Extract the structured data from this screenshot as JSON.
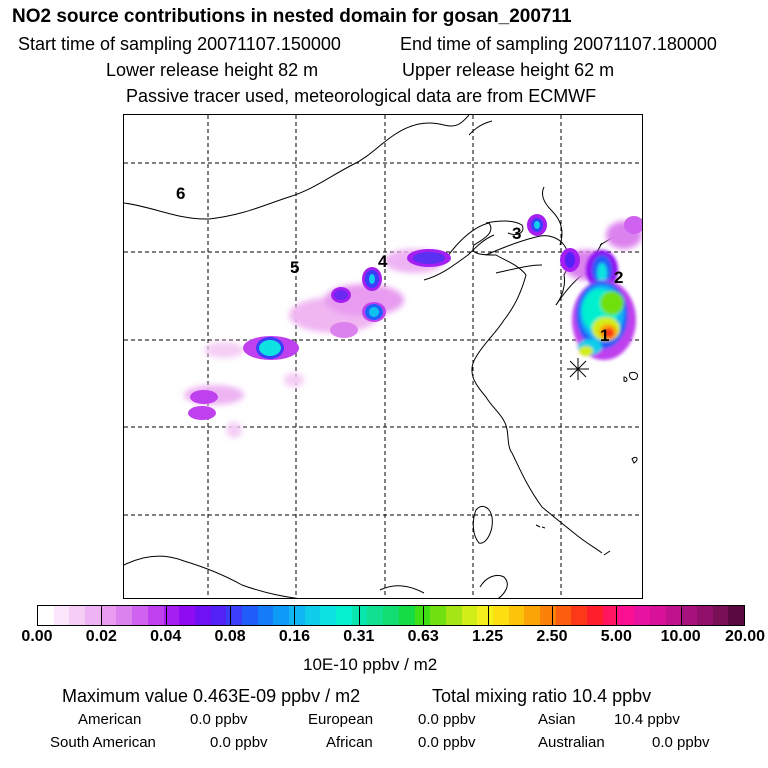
{
  "header": {
    "title": "NO2 source contributions in nested domain for gosan_200711",
    "start": "Start time of sampling 20071107.150000",
    "end": "End time of sampling 20071107.180000",
    "lower": "Lower release height   82 m",
    "upper": "Upper release height   62 m",
    "note": "Passive tracer used, meteorological data are from ECMWF"
  },
  "map": {
    "labels": [
      "1",
      "2",
      "3",
      "4",
      "5",
      "6"
    ]
  },
  "colorbar": {
    "ticks": [
      "0.00",
      "0.02",
      "0.04",
      "0.08",
      "0.16",
      "0.31",
      "0.63",
      "1.25",
      "2.50",
      "5.00",
      "10.00",
      "20.00"
    ],
    "unit": "10E-10 ppbv / m2",
    "colors": [
      "#ffffff",
      "#fbe6fb",
      "#f5cdf5",
      "#eeb3f3",
      "#e89bf0",
      "#dc82ee",
      "#cf62ee",
      "#bf40ee",
      "#a520f0",
      "#8e0bf2",
      "#6f10f5",
      "#5222f7",
      "#3a3ef8",
      "#205cf8",
      "#147cf8",
      "#0e9bf8",
      "#10b6f4",
      "#10cdeb",
      "#0ee2e2",
      "#05f0cf",
      "#08e6b0",
      "#10e090",
      "#12dd72",
      "#15dc45",
      "#3ee015",
      "#70e010",
      "#a5e515",
      "#d2ee18",
      "#f4f01c",
      "#fdde10",
      "#fdc20a",
      "#fba408",
      "#fb8208",
      "#fc5e10",
      "#fd3818",
      "#ff1e2c",
      "#ff1560",
      "#fa1090",
      "#e812a2",
      "#d81298",
      "#c0128c",
      "#a8127e",
      "#90106c",
      "#781058",
      "#5a0a40"
    ]
  },
  "summary": {
    "max": "Maximum value  0.463E-09 ppbv / m2",
    "total": "Total mixing ratio        10.4 ppbv",
    "regions": [
      {
        "name": "American",
        "value": "0.0 ppbv"
      },
      {
        "name": "European",
        "value": "0.0 ppbv"
      },
      {
        "name": "Asian",
        "value": "10.4 ppbv"
      },
      {
        "name": "South American",
        "value": "0.0 ppbv"
      },
      {
        "name": "African",
        "value": "0.0 ppbv"
      },
      {
        "name": "Australian",
        "value": "0.0 ppbv"
      }
    ]
  }
}
